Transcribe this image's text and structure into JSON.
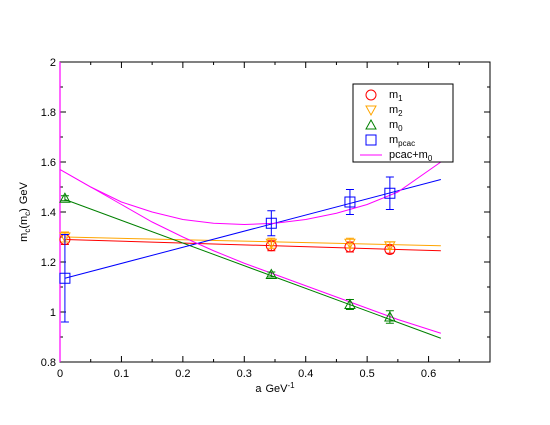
{
  "chart_data": {
    "type": "scatter",
    "xlabel": "a",
    "xlabel_unit": "GeV",
    "xlabel_unit_exp": "-1",
    "ylabel_parts": {
      "a": "m",
      "a_sub": "c",
      "b": "(m",
      "b_sub": "c",
      "c": ")",
      "unit": "GeV"
    },
    "xlim": [
      0,
      0.7
    ],
    "ylim": [
      0.8,
      2.0
    ],
    "xticks": [
      0,
      0.1,
      0.2,
      0.3,
      0.4,
      0.5,
      0.6
    ],
    "xtick_labels": [
      "0",
      "0.1",
      "0.2",
      "0.3",
      "0.4",
      "0.5",
      "0.6"
    ],
    "yticks": [
      0.8,
      1.0,
      1.2,
      1.4,
      1.6,
      1.8,
      2.0
    ],
    "ytick_labels": [
      "0.8",
      "1",
      "1.2",
      "1.4",
      "1.6",
      "1.8",
      "2"
    ],
    "legend_position": "top-right",
    "series": [
      {
        "name": "m",
        "name_sub": "1",
        "marker": "circle",
        "color": "#ff0000",
        "points": [
          {
            "x": 0.008,
            "y": 1.29,
            "err": 0.02
          },
          {
            "x": 0.344,
            "y": 1.265,
            "err": 0.02
          },
          {
            "x": 0.472,
            "y": 1.26,
            "err": 0.02
          },
          {
            "x": 0.537,
            "y": 1.25,
            "err": 0.015
          }
        ],
        "fit": {
          "kind": "line",
          "color": "#ff0000",
          "x": [
            0.008,
            0.62
          ],
          "y": [
            1.29,
            1.245
          ]
        }
      },
      {
        "name": "m",
        "name_sub": "2",
        "marker": "triangle-down",
        "color": "#ffa500",
        "points": [
          {
            "x": 0.008,
            "y": 1.3,
            "err": 0.02
          },
          {
            "x": 0.344,
            "y": 1.275,
            "err": 0.02
          },
          {
            "x": 0.472,
            "y": 1.275,
            "err": 0.02
          },
          {
            "x": 0.537,
            "y": 1.265,
            "err": 0.015
          }
        ],
        "fit": {
          "kind": "line",
          "color": "#ffa500",
          "x": [
            0.008,
            0.62
          ],
          "y": [
            1.3,
            1.265
          ]
        }
      },
      {
        "name": "m",
        "name_sub": "0",
        "marker": "triangle-up",
        "color": "#008000",
        "points": [
          {
            "x": 0.008,
            "y": 1.455,
            "err": 0.01
          },
          {
            "x": 0.344,
            "y": 1.15,
            "err": 0.01
          },
          {
            "x": 0.472,
            "y": 1.03,
            "err": 0.02
          },
          {
            "x": 0.537,
            "y": 0.98,
            "err": 0.025
          }
        ],
        "fit": {
          "kind": "line",
          "color": "#008000",
          "x": [
            0.008,
            0.62
          ],
          "y": [
            1.45,
            0.895
          ]
        }
      },
      {
        "name": "m",
        "name_sub": "pcac",
        "marker": "square",
        "color": "#0000ff",
        "points": [
          {
            "x": 0.008,
            "y": 1.135,
            "err": 0.175
          },
          {
            "x": 0.344,
            "y": 1.355,
            "err": 0.05
          },
          {
            "x": 0.472,
            "y": 1.44,
            "err": 0.05
          },
          {
            "x": 0.537,
            "y": 1.475,
            "err": 0.065
          }
        ],
        "fit": {
          "kind": "line",
          "color": "#0000ff",
          "x": [
            0.008,
            0.62
          ],
          "y": [
            1.135,
            1.53
          ]
        }
      },
      {
        "name": "pcac+m",
        "name_sub": "0",
        "marker": "none",
        "color": "#ff00ff",
        "curves": [
          {
            "x": [
              0.0,
              0.05,
              0.1,
              0.15,
              0.2,
              0.25,
              0.3,
              0.35,
              0.4,
              0.45,
              0.5,
              0.55,
              0.62
            ],
            "y": [
              1.57,
              1.5,
              1.44,
              1.4,
              1.37,
              1.355,
              1.35,
              1.355,
              1.37,
              1.395,
              1.43,
              1.48,
              1.6
            ]
          },
          {
            "x": [
              0.0,
              0.05,
              0.1,
              0.15,
              0.2,
              0.25,
              0.3,
              0.35,
              0.4,
              0.45,
              0.5,
              0.55,
              0.62
            ],
            "y": [
              1.57,
              1.5,
              1.43,
              1.36,
              1.3,
              1.245,
              1.195,
              1.15,
              1.105,
              1.06,
              1.015,
              0.97,
              0.915
            ]
          }
        ],
        "vertical": {
          "x": 0.0,
          "y": [
            0.8,
            2.0
          ]
        }
      }
    ]
  }
}
